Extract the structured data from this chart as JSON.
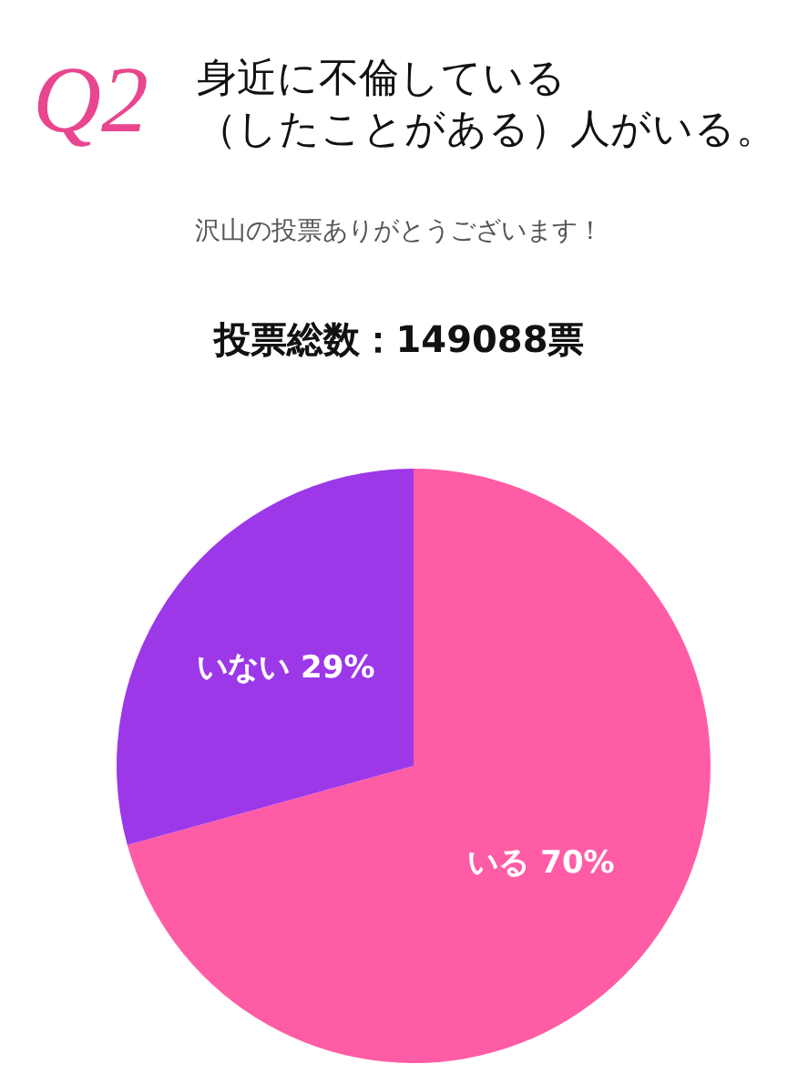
{
  "chart_data": {
    "type": "pie",
    "title": "身近に不倫している（したことがある）人がいる。",
    "subtitle": "沢山の投票ありがとうございます！",
    "annotations": [
      "Q2",
      "投票総数：149088票"
    ],
    "categories": [
      "いる",
      "いない"
    ],
    "values": [
      70,
      29
    ],
    "value_labels": [
      "70%",
      "29%"
    ],
    "colors": [
      "#ff5ca6",
      "#9c38e8"
    ],
    "legend": false
  }
}
